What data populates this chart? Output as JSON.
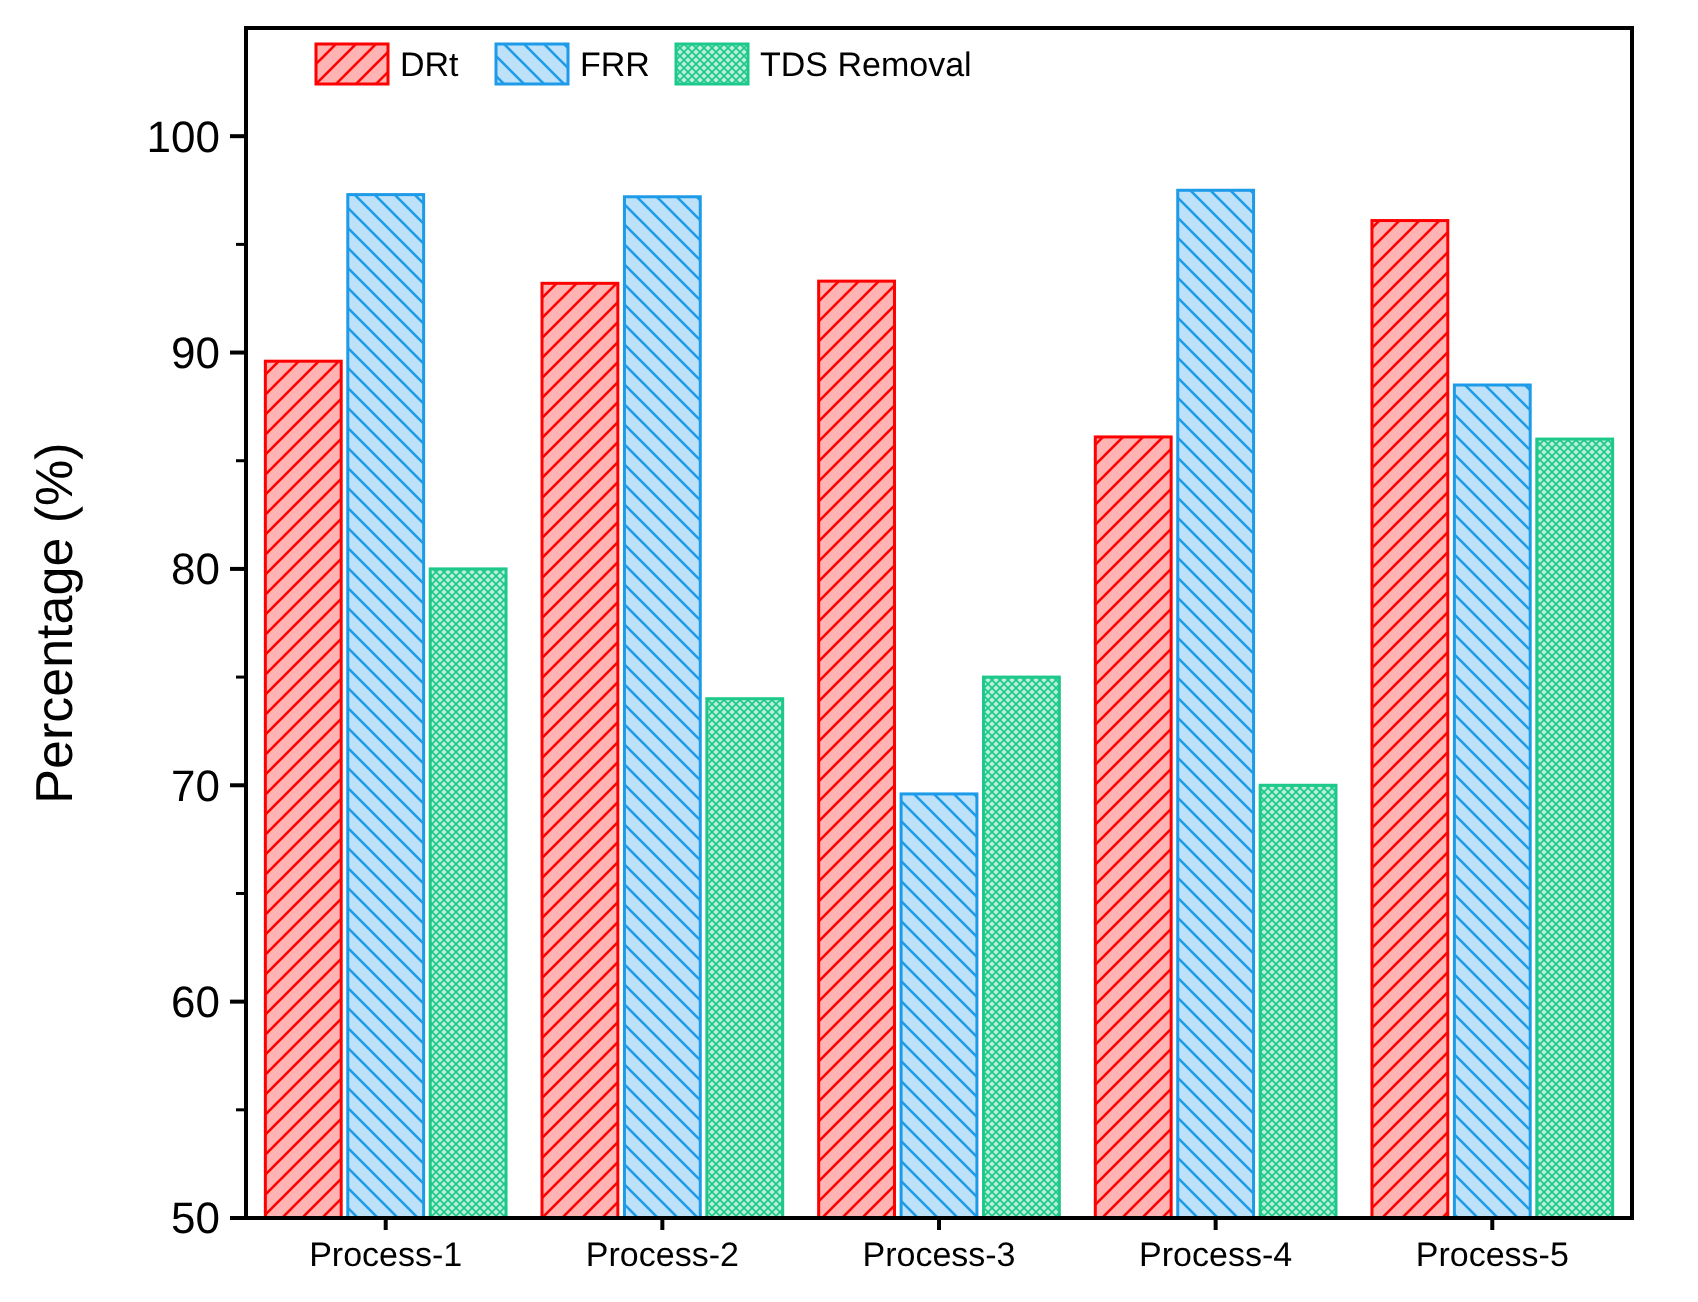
{
  "chart_data": {
    "type": "bar",
    "ylabel": "Percentage (%)",
    "categories": [
      "Process-1",
      "Process-2",
      "Process-3",
      "Process-4",
      "Process-5"
    ],
    "series": [
      {
        "name": "DRt",
        "color": "#ff0000",
        "values": [
          89.6,
          93.2,
          93.3,
          86.1,
          96.1
        ]
      },
      {
        "name": "FRR",
        "color": "#1e9be8",
        "values": [
          97.3,
          97.2,
          69.6,
          97.5,
          88.5
        ]
      },
      {
        "name": "TDS Removal",
        "color": "#1cc88a",
        "values": [
          80,
          74,
          75,
          70,
          86
        ]
      }
    ],
    "ylim": [
      50,
      105
    ],
    "yticks": [
      50,
      60,
      70,
      80,
      90,
      100
    ],
    "legend": "top left",
    "grid": false
  }
}
